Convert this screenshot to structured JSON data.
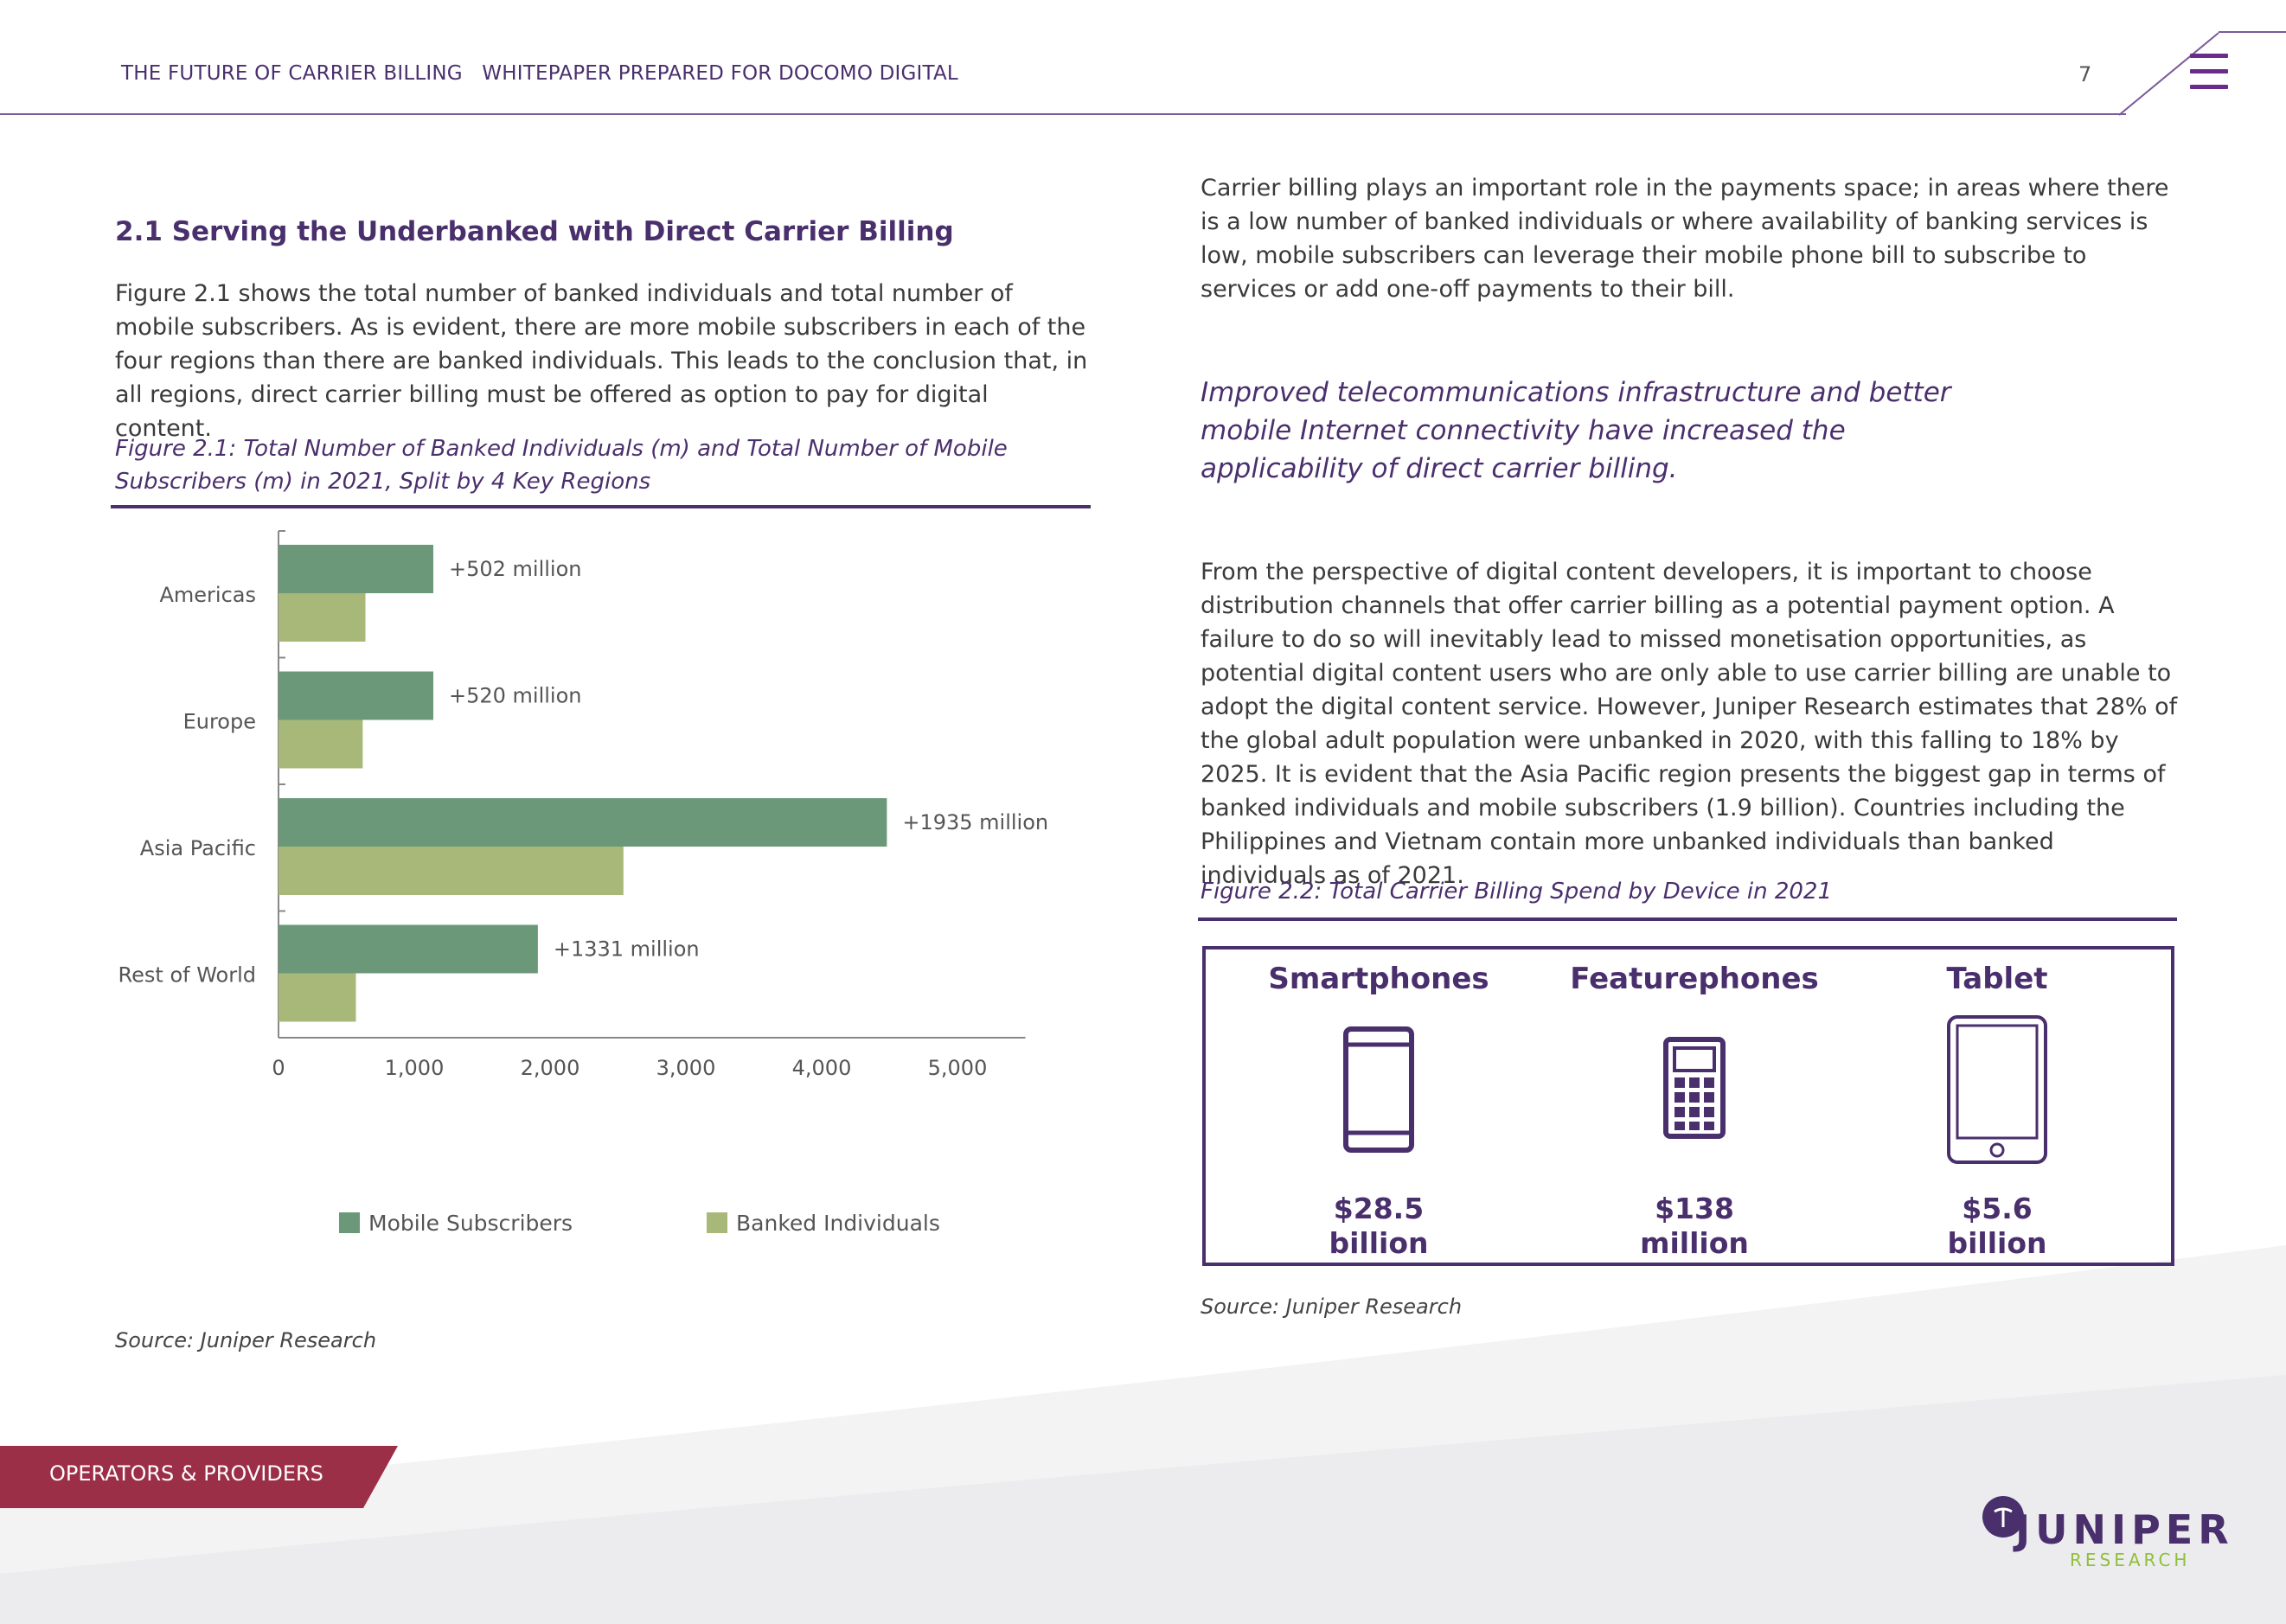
{
  "header": {
    "title": "THE FUTURE OF CARRIER BILLING   WHITEPAPER PREPARED FOR DOCOMO DIGITAL",
    "page_number": "7",
    "menu_icon": "hamburger-menu-icon"
  },
  "left": {
    "section_heading": "2.1 Serving the Underbanked with Direct Carrier Billing",
    "intro": "Figure 2.1 shows the total number of banked individuals and total number of mobile subscribers. As is evident, there are more mobile subscribers in each of the four regions than there are banked individuals. This leads to the conclusion that, in all regions, direct carrier billing must be offered as option to pay for digital content.",
    "figure_caption": "Figure 2.1: Total Number of Banked Individuals (m) and Total Number of Mobile Subscribers (m) in 2021, Split by 4 Key Regions",
    "source": "Source: Juniper Research"
  },
  "chart_data": {
    "type": "bar",
    "orientation": "horizontal",
    "title": "Total Number of Banked Individuals (m) and Total Number of Mobile Subscribers (m) in 2021, Split by 4 Key Regions",
    "categories": [
      "Americas",
      "Europe",
      "Asia Pacific",
      "Rest of World"
    ],
    "series": [
      {
        "name": "Mobile Subscribers",
        "color": "#6a9878",
        "values": [
          1140,
          1140,
          4480,
          1910
        ]
      },
      {
        "name": "Banked Individuals",
        "color": "#a7b878",
        "values": [
          640,
          620,
          2540,
          570
        ]
      }
    ],
    "annotations": [
      "+502 million",
      "+520 million",
      "+1935 million",
      "+1331 million"
    ],
    "x_ticks": [
      0,
      1000,
      2000,
      3000,
      4000,
      5000
    ],
    "x_tick_labels": [
      "0",
      "1,000",
      "2,000",
      "3,000",
      "4,000",
      "5,000"
    ],
    "xlim": [
      0,
      5500
    ],
    "legend": [
      "Mobile Subscribers",
      "Banked Individuals"
    ],
    "legend_position": "bottom",
    "xlabel": "",
    "ylabel": ""
  },
  "right": {
    "para1": "Carrier billing plays an important role in the payments space; in areas where there is a low number of banked individuals or where availability of banking services is low, mobile subscribers can leverage their mobile phone bill to subscribe to services or add one-off payments to their bill.",
    "pull_quote": "Improved telecommunications infrastructure and better mobile Internet connectivity have increased the applicability of direct carrier billing.",
    "para2": "From the perspective of digital content developers, it is important to choose distribution channels that offer carrier billing as a potential payment option. A failure to do so will inevitably lead to missed monetisation opportunities, as potential digital content users who are only able to use carrier billing are unable to adopt the digital content service. However, Juniper Research estimates that 28% of the global adult population were unbanked in 2020, with this falling to 18% by 2025. It is evident that the Asia Pacific region presents the biggest gap in terms of banked individuals and mobile subscribers (1.9 billion). Countries including the Philippines and Vietnam contain more unbanked individuals than banked individuals as of 2021.",
    "figure_caption": "Figure 2.2: Total Carrier Billing Spend by Device in 2021",
    "devices": [
      {
        "name": "Smartphones",
        "icon": "smartphone-icon",
        "value_line1": "$28.5",
        "value_line2": "billion"
      },
      {
        "name": "Featurephones",
        "icon": "featurephone-icon",
        "value_line1": "$138",
        "value_line2": "million"
      },
      {
        "name": "Tablet",
        "icon": "tablet-icon",
        "value_line1": "$5.6",
        "value_line2": "billion"
      }
    ],
    "source": "Source: Juniper Research"
  },
  "footer": {
    "section_tab": "OPERATORS & PROVIDERS",
    "logo_name": "JUNIPER",
    "logo_sub": "RESEARCH",
    "colors": {
      "tab": "#9c2f48",
      "brand": "#4a2f6d",
      "accent": "#8fbf3a"
    }
  }
}
